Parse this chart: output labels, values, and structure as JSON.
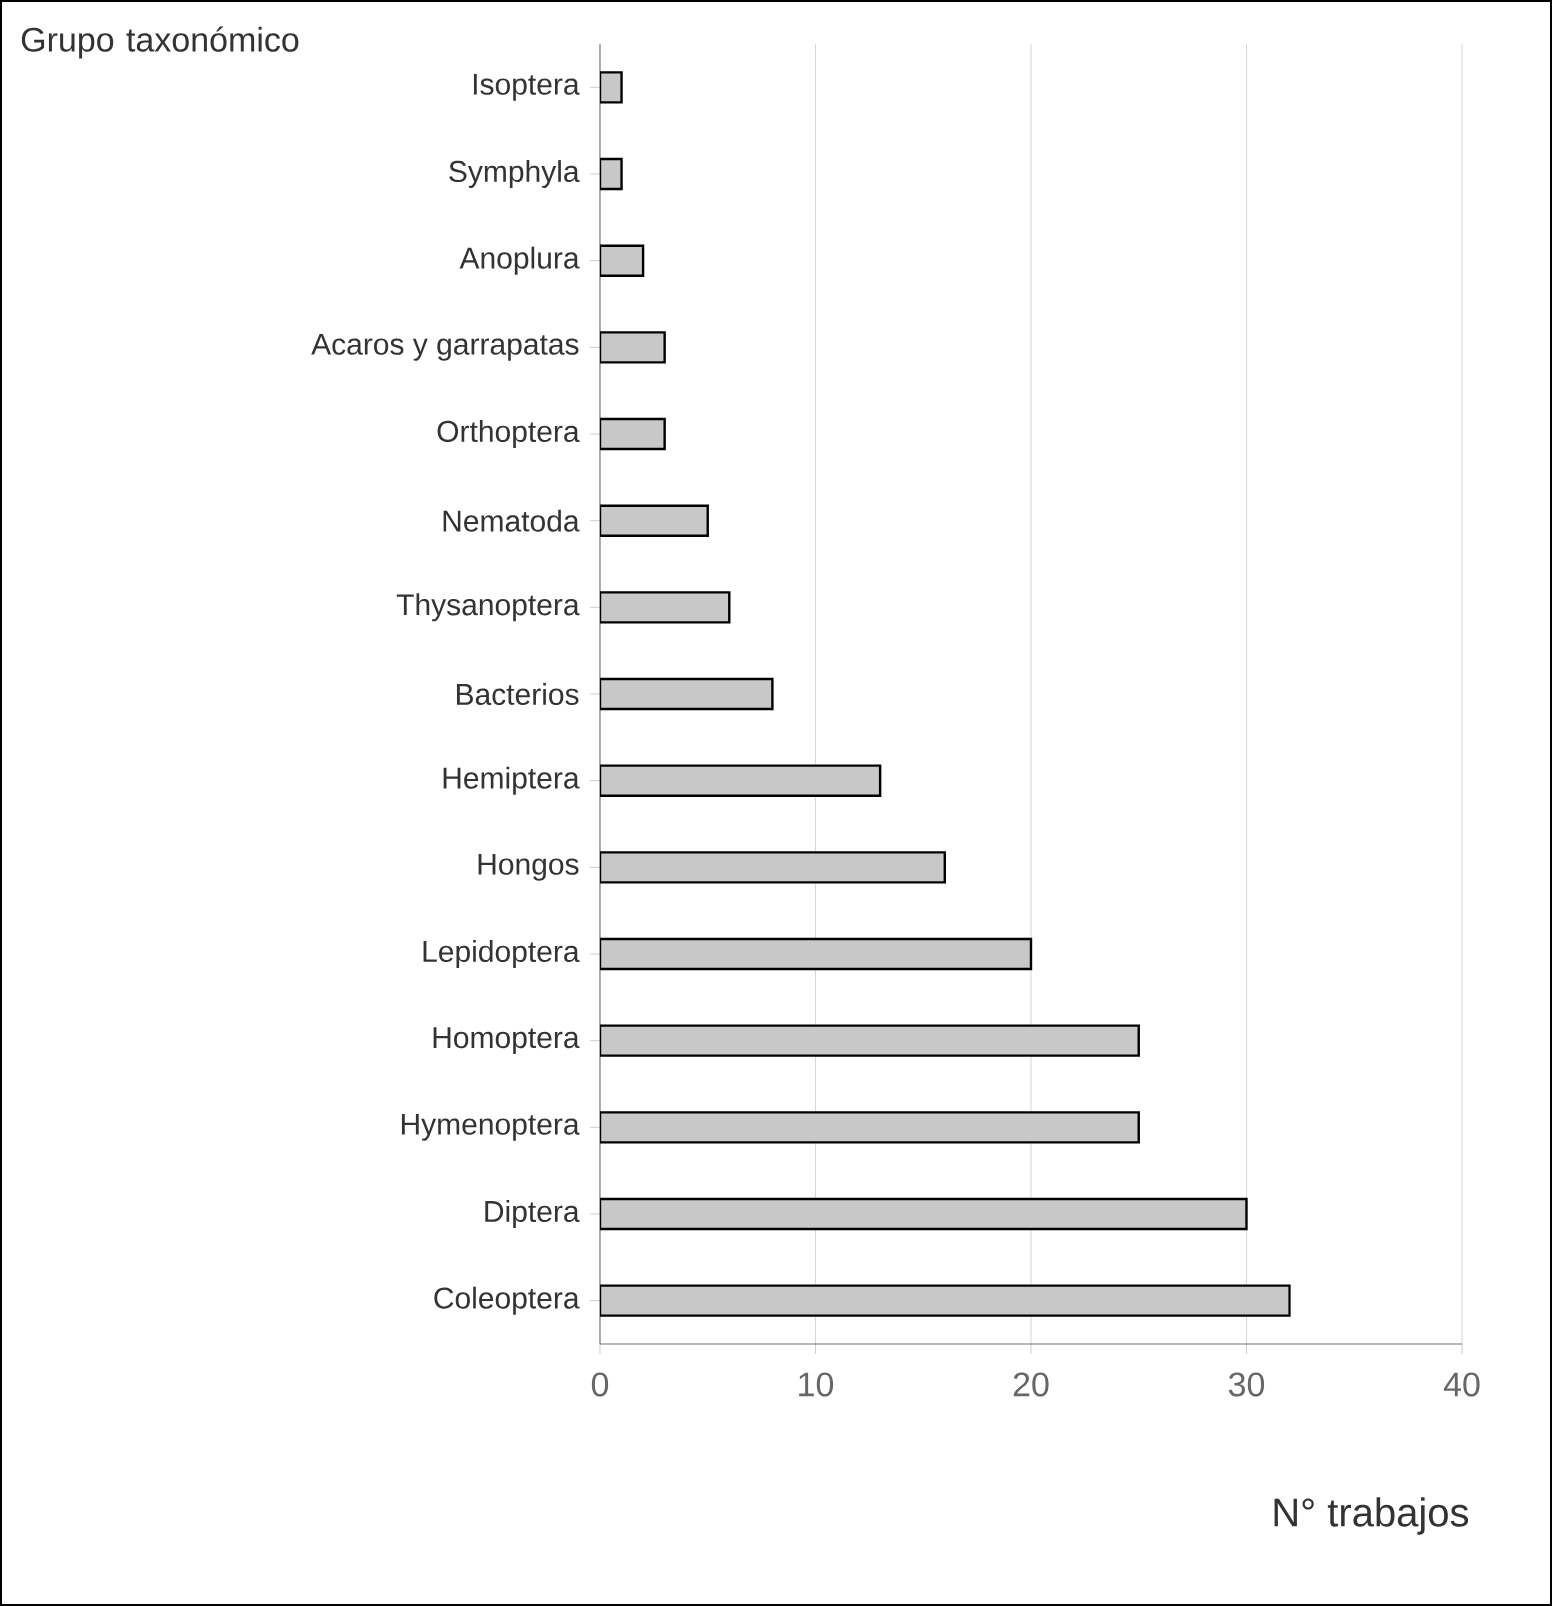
{
  "chart_data": {
    "type": "bar",
    "orientation": "horizontal",
    "xlabel": "N° trabajos",
    "ylabel": "Grupo taxonómico",
    "categories": [
      "Isoptera",
      "Symphyla",
      "Anoplura",
      "Acaros y garrapatas",
      "Orthoptera",
      "Nematoda",
      "Thysanoptera",
      "Bacterios",
      "Hemiptera",
      "Hongos",
      "Lepidoptera",
      "Homoptera",
      "Hymenoptera",
      "Diptera",
      "Coleoptera"
    ],
    "values": [
      1,
      1,
      2,
      3,
      3,
      5,
      6,
      8,
      13,
      16,
      20,
      25,
      25,
      30,
      32
    ],
    "color": "#c8c8c8",
    "xlim": [
      0,
      40
    ],
    "xticks": [
      0,
      10,
      20,
      30,
      40
    ],
    "grid": "x"
  }
}
